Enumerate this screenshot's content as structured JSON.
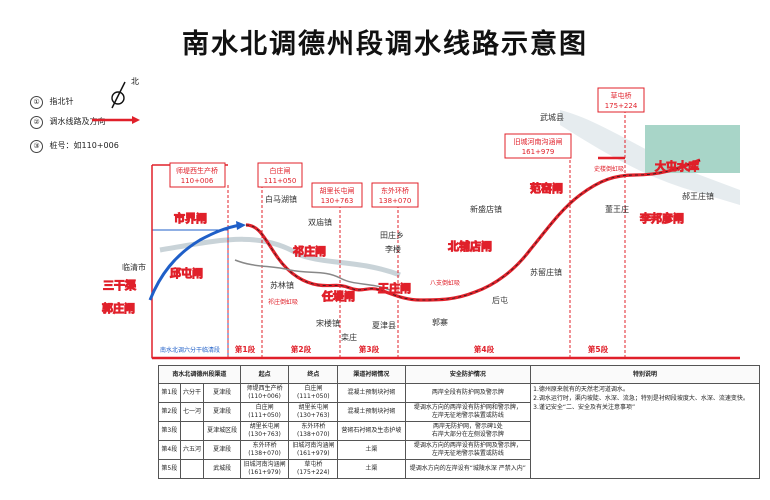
{
  "title": "南水北调德州段调水线路示意图",
  "legend": {
    "north_label": "北",
    "items": [
      {
        "num": "①",
        "text": "指北针"
      },
      {
        "num": "②",
        "text": "调水线路及方向"
      },
      {
        "num": "③",
        "text": "桩号：如110+006"
      }
    ]
  },
  "colors": {
    "route": "#e0202a",
    "route_blue": "#1f5fc8",
    "callout": "#e0202a",
    "river": "#cfd8dc",
    "lake": "#a8d5c8"
  },
  "stations": [
    {
      "name": "师堤西生产桥",
      "chainage": "110+006"
    },
    {
      "name": "白庄闸",
      "chainage": "111+050"
    },
    {
      "name": "胡里长屯闸",
      "chainage": "130+763"
    },
    {
      "name": "东外环桥",
      "chainage": "138+070"
    },
    {
      "name": "旧城河南沟涵闸",
      "chainage": "161+979"
    },
    {
      "name": "草屯桥",
      "chainage": "175+224"
    }
  ],
  "gates": [
    "市界闸",
    "邱屯闸",
    "祁庄闸",
    "任堤闸",
    "王庄闸",
    "北铺店闸",
    "范窑闸",
    "李邦彦闸",
    "三干渠",
    "郭庄闸",
    "大屯水库"
  ],
  "towns": [
    "临清市",
    "白马湖镇",
    "双庙镇",
    "田庄乡",
    "李楼",
    "新盛店镇",
    "武城县",
    "董王庄",
    "郝王庄镇",
    "苏留庄镇",
    "后屯",
    "郭寨",
    "夏津县",
    "宋楼镇",
    "栾庄",
    "苏林镇"
  ],
  "siphons": [
    "祁庄倒虹吸",
    "八支倒虹吸",
    "史楼倒虹吸"
  ],
  "temp_segment": "南水北调六分干临清段",
  "segments": [
    "第1段",
    "第2段",
    "第3段",
    "第4段",
    "第5段"
  ],
  "table": {
    "headers": [
      "南水北调德州段渠道",
      "",
      "起点",
      "终点",
      "渠道衬砌情况",
      "安全防护情况",
      "特别说明"
    ],
    "rows": [
      {
        "seg": "第1段",
        "river": "六分干",
        "county": "夏津段",
        "start": "师堤西生产桥\n(110+006)",
        "end": "白庄闸\n(111+050)",
        "lining": "混凝土预制块衬砌",
        "safety": "两岸全段有防护网及警示牌"
      },
      {
        "seg": "第2段",
        "river": "七一河",
        "county": "夏津段",
        "start": "白庄闸\n(111+050)",
        "end": "胡里长屯闸\n(130+763)",
        "lining": "混凝土预制块衬砌",
        "safety": "堤调水方向的两岸设有防护网和警示牌，\n左岸无征地警示装置或防线"
      },
      {
        "seg": "第3段",
        "river": "",
        "county": "夏津城区段",
        "start": "胡里长屯闸\n(130+763)",
        "end": "东外环桥\n(138+070)",
        "lining": "营砌石衬砌及生态护坡",
        "safety": "两岸无防护网，警示碑1处\n右岸大部分在左侧设警示牌"
      },
      {
        "seg": "第4段",
        "river": "六五河",
        "county": "夏津段",
        "start": "东外环桥\n(138+070)",
        "end": "旧城河南沟涵闸\n(161+979)",
        "lining": "土渠",
        "safety": "堤调水方向的两岸设有防护网及警示牌，\n左岸无征地警示装置或防线"
      },
      {
        "seg": "第5段",
        "river": "",
        "county": "武城段",
        "start": "旧城河南沟涵闸\n(161+979)",
        "end": "草屯桥\n(175+224)",
        "lining": "土渠",
        "safety": "堤调水方向的左岸设有“城陵水深 严禁入内”"
      }
    ],
    "note": "1.德州原来就有的天然老河道调水。\n2.调水运行时，渠内坡陡、水深、流急；特别是衬砌段坡度大、水深、流速变快。\n3.谨记安全“二、安全及有关注意事项”"
  }
}
